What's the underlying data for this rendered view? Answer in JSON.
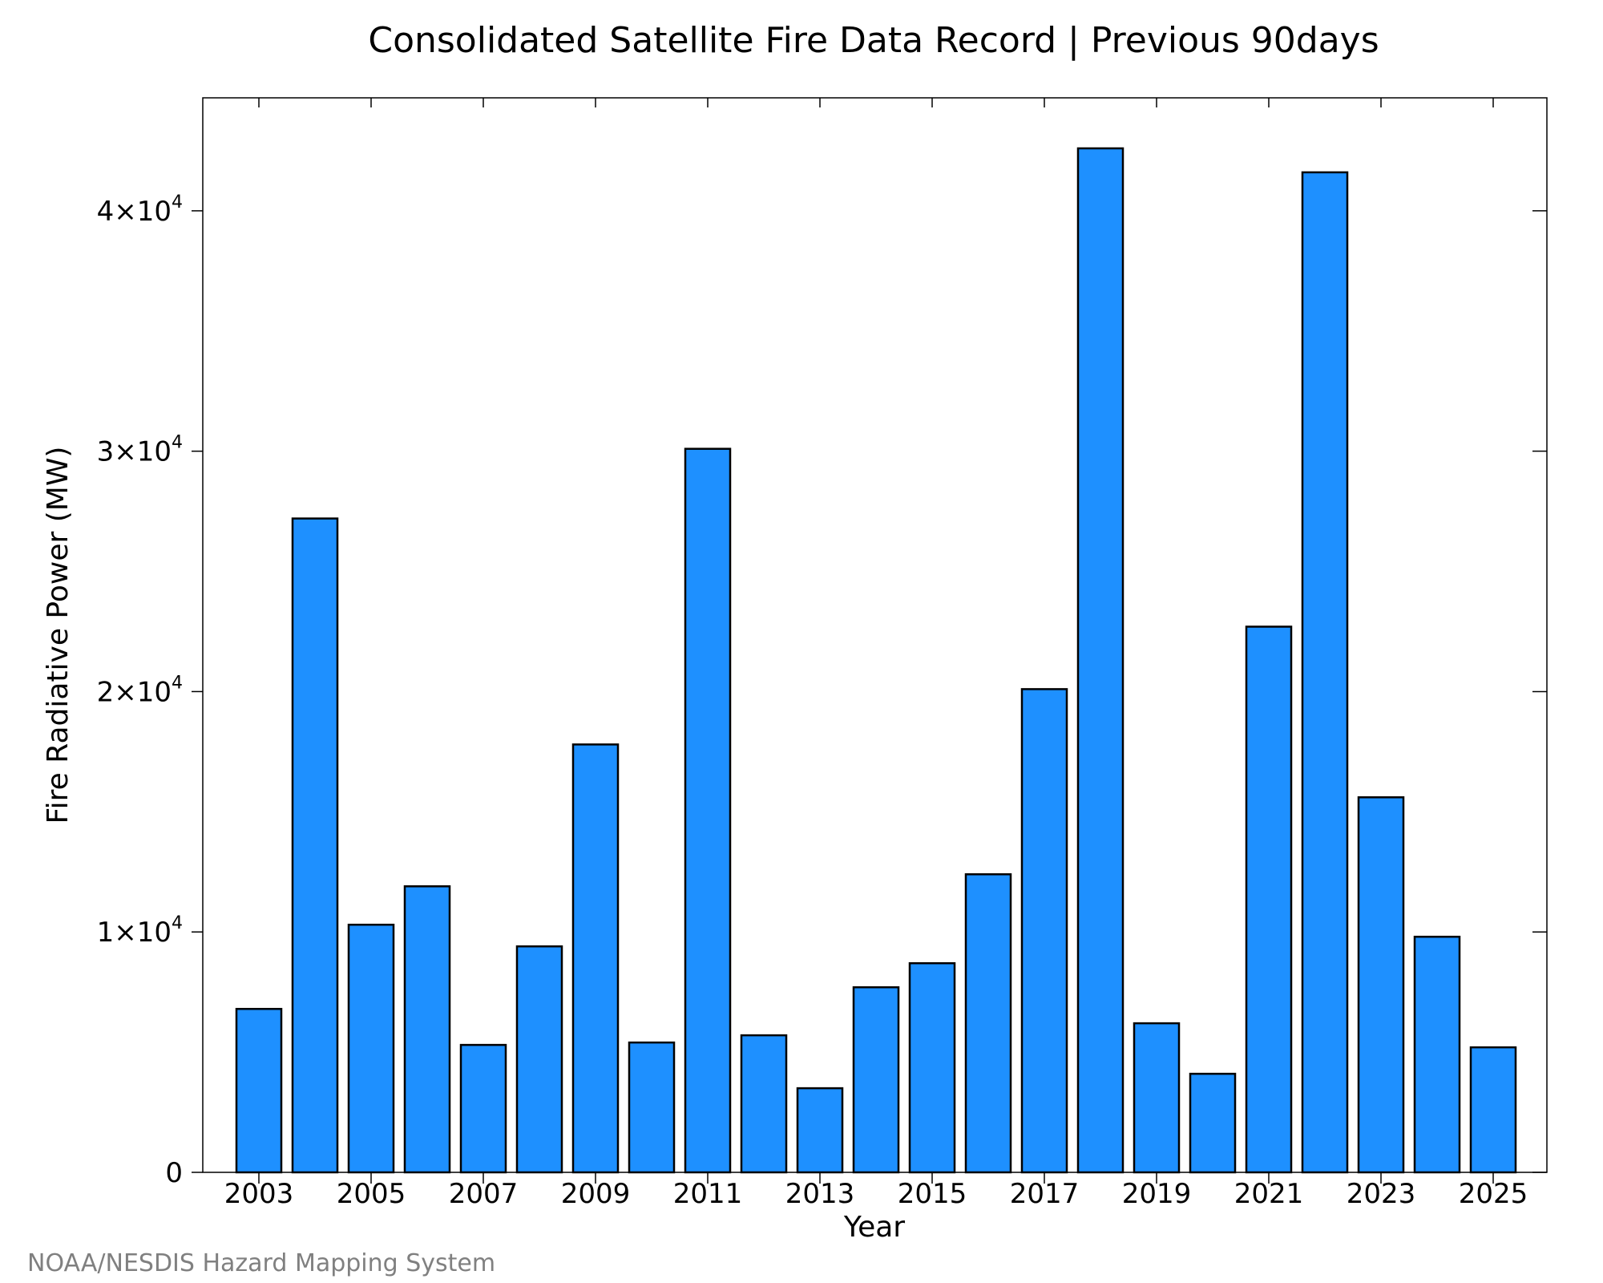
{
  "credit": "NOAA/NESDIS Hazard Mapping System",
  "chart_data": {
    "type": "bar",
    "title": "Consolidated Satellite Fire Data Record | Previous 90days",
    "xlabel": "Year",
    "ylabel": "Fire Radiative Power (MW)",
    "categories": [
      "2003",
      "2004",
      "2005",
      "2006",
      "2007",
      "2008",
      "2009",
      "2010",
      "2011",
      "2012",
      "2013",
      "2014",
      "2015",
      "2016",
      "2017",
      "2018",
      "2019",
      "2020",
      "2021",
      "2022",
      "2023",
      "2024",
      "2025"
    ],
    "values": [
      6800,
      27200,
      10300,
      11900,
      5300,
      9400,
      17800,
      5400,
      30100,
      5700,
      3500,
      7700,
      8700,
      12400,
      20100,
      42600,
      6200,
      4100,
      22700,
      41600,
      15600,
      9800,
      5200
    ],
    "x_tick_labels": [
      "2003",
      "2005",
      "2007",
      "2009",
      "2011",
      "2013",
      "2015",
      "2017",
      "2019",
      "2021",
      "2023",
      "2025"
    ],
    "y_ticks": [
      {
        "value": 0,
        "label": "0",
        "exp": ""
      },
      {
        "value": 10000,
        "label": "1×10",
        "exp": "4"
      },
      {
        "value": 20000,
        "label": "2×10",
        "exp": "4"
      },
      {
        "value": 30000,
        "label": "3×10",
        "exp": "4"
      },
      {
        "value": 40000,
        "label": "4×10",
        "exp": "4"
      }
    ],
    "ylim": [
      0,
      44700
    ],
    "bar_color": "#1e90ff",
    "bar_edge_color": "#000000",
    "grid": false,
    "legend": "none"
  }
}
